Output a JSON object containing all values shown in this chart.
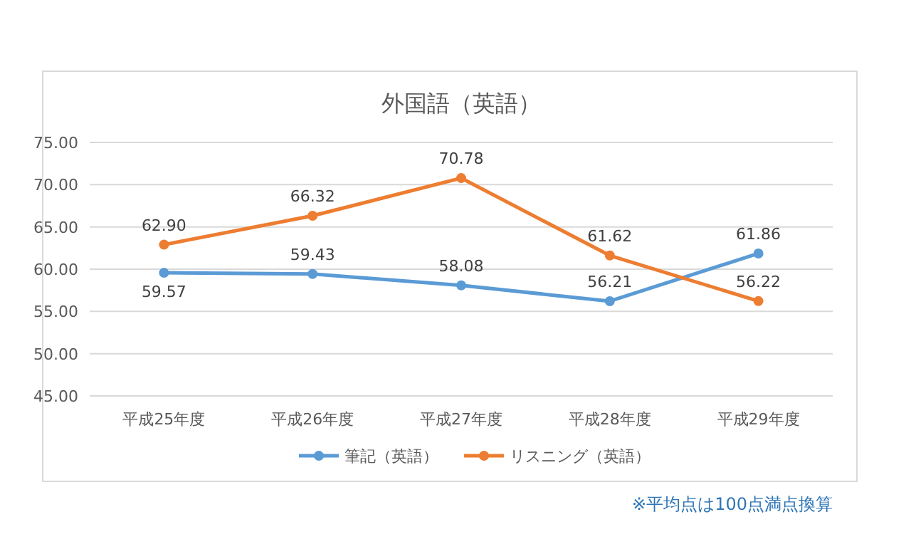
{
  "chart_data": {
    "type": "line",
    "title": "外国語（英語）",
    "categories": [
      "平成25年度",
      "平成26年度",
      "平成27年度",
      "平成28年度",
      "平成29年度"
    ],
    "series": [
      {
        "name": "筆記（英語）",
        "color": "#5b9bd5",
        "values": [
          59.57,
          59.43,
          58.08,
          56.21,
          61.86
        ],
        "value_labels": [
          "59.57",
          "59.43",
          "58.08",
          "56.21",
          "61.86"
        ]
      },
      {
        "name": "リスニング（英語）",
        "color": "#ed7d31",
        "values": [
          62.9,
          66.32,
          70.78,
          61.62,
          56.22
        ],
        "value_labels": [
          "62.90",
          "66.32",
          "70.78",
          "61.62",
          "56.22"
        ]
      }
    ],
    "ylim": [
      45,
      75
    ],
    "yticks": [
      {
        "value": 45,
        "label": "45.00"
      },
      {
        "value": 50,
        "label": "50.00"
      },
      {
        "value": 55,
        "label": "55.00"
      },
      {
        "value": 60,
        "label": "60.00"
      },
      {
        "value": 65,
        "label": "65.00"
      },
      {
        "value": 70,
        "label": "70.00"
      },
      {
        "value": 75,
        "label": "75.00"
      }
    ],
    "grid": "y",
    "legend": "bottom",
    "marker": "circle",
    "line_style": "solid",
    "annotations": [
      "※平均点は100点満点換算"
    ]
  }
}
